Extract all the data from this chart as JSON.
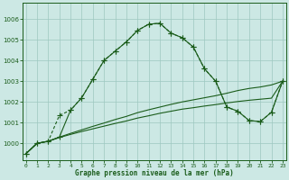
{
  "title": "Graphe pression niveau de la mer (hPa)",
  "bg_color": "#cce8e4",
  "grid_color": "#9dc8c0",
  "line_color": "#1a5c1a",
  "ylim": [
    999.2,
    1006.8
  ],
  "yticks": [
    1000,
    1001,
    1002,
    1003,
    1004,
    1005,
    1006
  ],
  "xlim": [
    -0.3,
    23.3
  ],
  "x_labels": [
    "0",
    "1",
    "2",
    "3",
    "4",
    "5",
    "6",
    "7",
    "8",
    "9",
    "10",
    "11",
    "12",
    "13",
    "14",
    "15",
    "16",
    "17",
    "18",
    "19",
    "20",
    "21",
    "22",
    "23"
  ],
  "series_main_solid": [
    999.5,
    1000.0,
    1000.1,
    1000.3,
    1001.6,
    1002.2,
    1003.1,
    1004.0,
    1004.45,
    1004.9,
    1005.45,
    1005.75,
    1005.8,
    1005.32,
    1005.1,
    1004.65,
    1003.6,
    1003.0,
    1001.75,
    1001.55,
    1001.1,
    1001.05,
    1001.5,
    1003.0
  ],
  "series_main_dotted": [
    999.5,
    1000.0,
    1000.1,
    1001.35,
    1001.6,
    1002.2,
    1003.1,
    1004.0,
    1004.45,
    1004.9,
    1005.45,
    1005.75,
    1005.8,
    1005.32,
    1005.1,
    1004.65,
    1003.6,
    1003.0,
    1001.75,
    1001.55,
    1001.1,
    1001.05,
    1001.5,
    1003.0
  ],
  "series_upper_gradual": [
    999.5,
    1000.0,
    1000.1,
    1000.3,
    1000.48,
    1000.65,
    1000.82,
    1000.98,
    1001.15,
    1001.3,
    1001.48,
    1001.62,
    1001.75,
    1001.88,
    1002.0,
    1002.1,
    1002.2,
    1002.3,
    1002.42,
    1002.55,
    1002.65,
    1002.72,
    1002.82,
    1003.0
  ],
  "series_lower_gradual": [
    999.5,
    1000.0,
    1000.1,
    1000.28,
    1000.43,
    1000.57,
    1000.7,
    1000.83,
    1000.96,
    1001.08,
    1001.22,
    1001.33,
    1001.45,
    1001.55,
    1001.65,
    1001.72,
    1001.8,
    1001.87,
    1001.95,
    1002.02,
    1002.08,
    1002.13,
    1002.18,
    1003.0
  ],
  "marker": "+",
  "marker_size": 4.5,
  "lw": 0.8
}
